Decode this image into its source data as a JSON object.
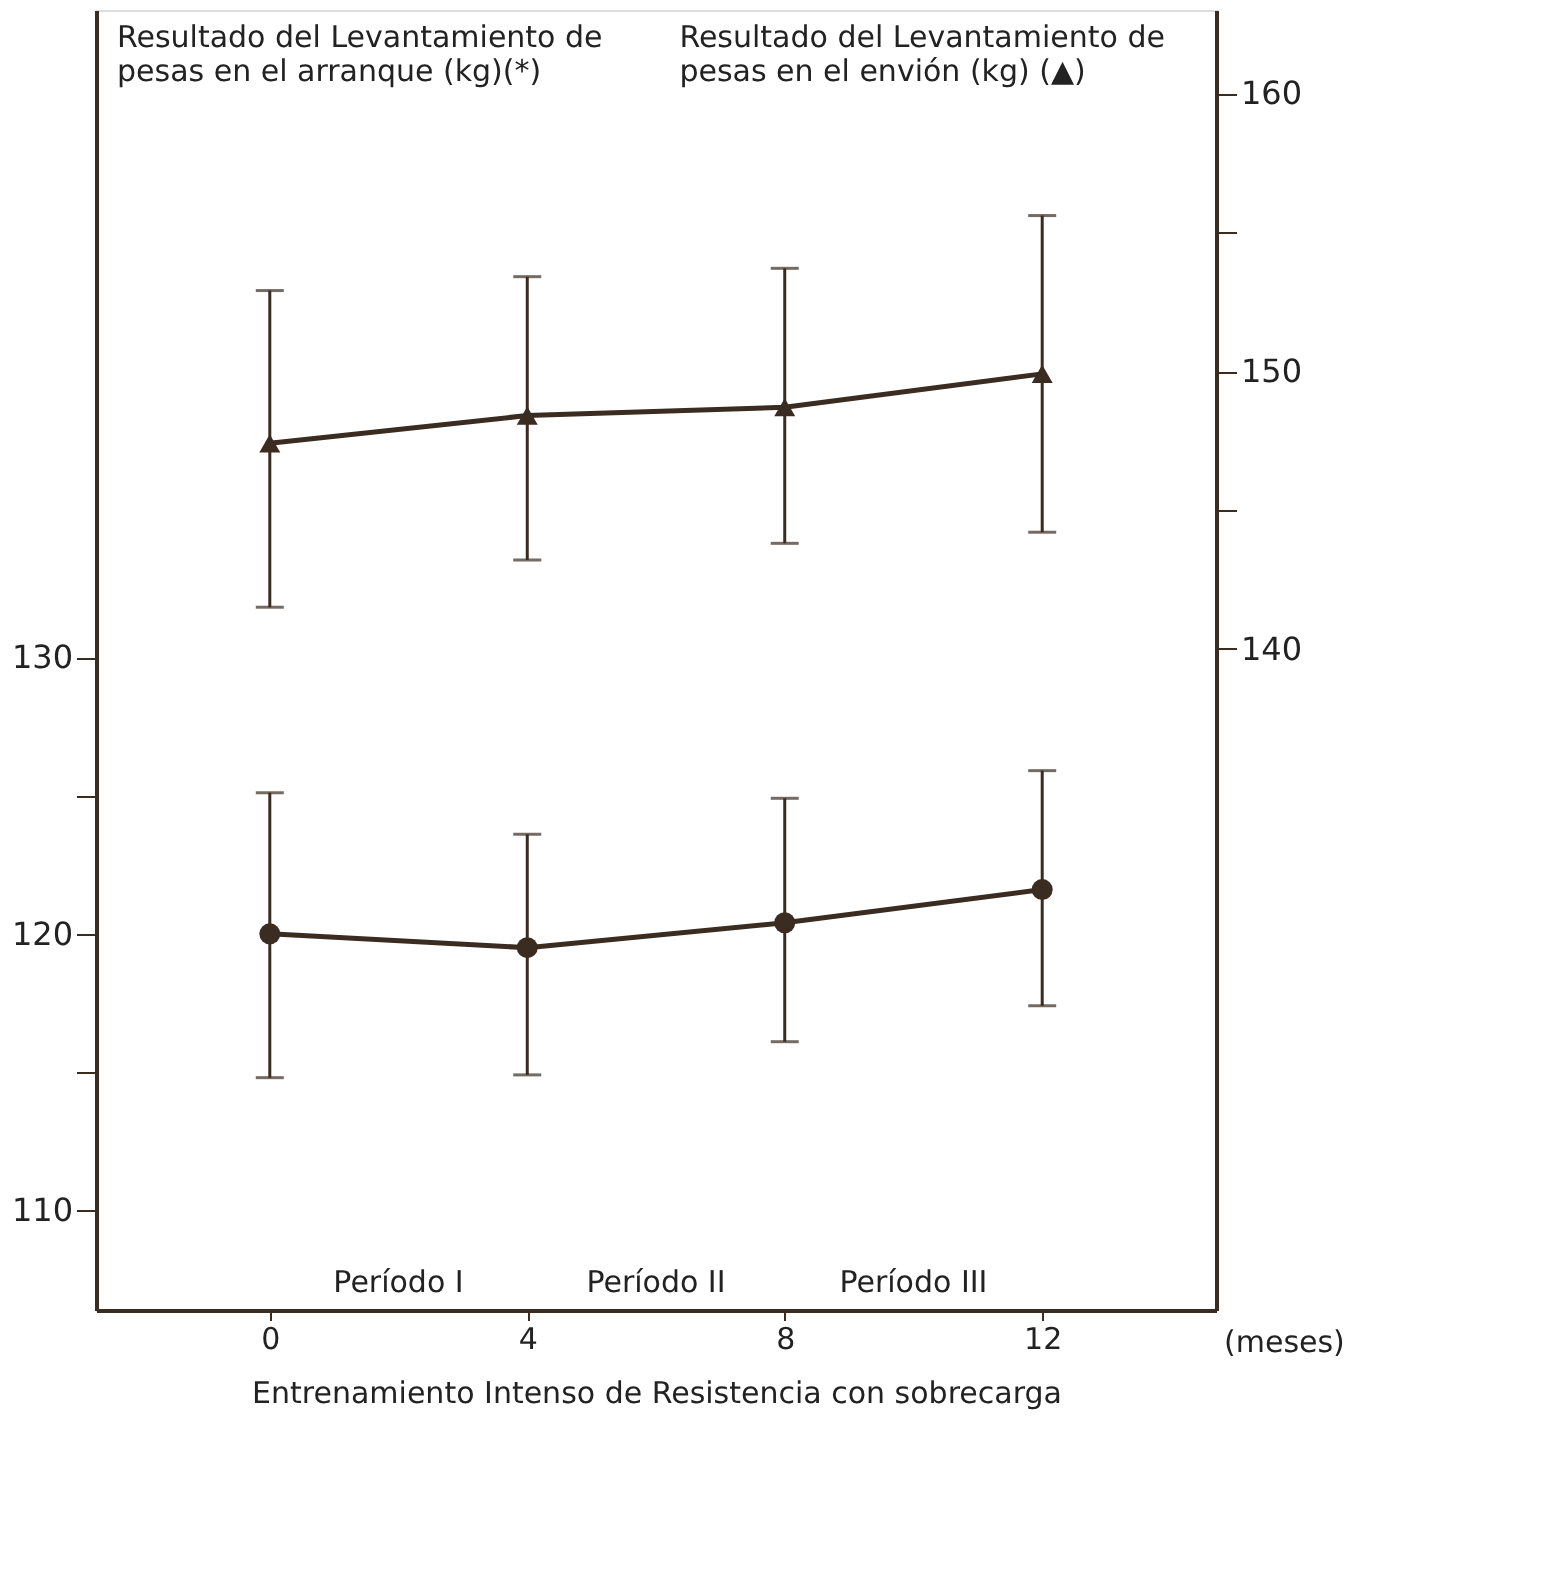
{
  "chart_data": {
    "type": "line",
    "xlabel": "Entrenamiento Intenso de Resistencia con sobrecarga",
    "ylabel": "Resultado del Levantamiento de pesas en el arranque (kg)(*)",
    "y2label": "Resultado del Levantamiento de pesas en el envión (kg) (▲)",
    "x": [
      0,
      4,
      8,
      12
    ],
    "xlim": [
      -2.7,
      14.7
    ],
    "xticks": [
      0,
      4,
      8,
      12
    ],
    "ylim": [
      106.4,
      153.4
    ],
    "yticks": [
      110,
      {
        "value": 115,
        "label": null
      },
      120,
      {
        "value": 125,
        "label": null
      },
      130
    ],
    "y2lim": [
      116.2,
      163
    ],
    "y2ticks": [
      {
        "value": 145,
        "label": null
      },
      140,
      150,
      {
        "value": 155,
        "label": null
      },
      160
    ],
    "series": [
      {
        "color": "#3b2c22",
        "marker": "circle",
        "values": [
          120.0,
          119.5,
          120.4,
          121.6
        ],
        "errors": [
          [
            114.8,
            125.1
          ],
          [
            114.9,
            123.6
          ],
          [
            116.1,
            124.9
          ],
          [
            117.4,
            125.9
          ]
        ]
      },
      {
        "color": "#3b2c22",
        "marker": "triangle",
        "axis": "y2",
        "values": [
          147.4,
          148.4,
          148.7,
          149.9
        ],
        "errors": [
          [
            141.5,
            152.9
          ],
          [
            143.2,
            153.4
          ],
          [
            143.8,
            153.7
          ],
          [
            144.2,
            155.6
          ]
        ]
      }
    ],
    "annotations": [
      "Período I",
      "Período II",
      "Período III",
      "(meses)"
    ],
    "line_style": "solid"
  }
}
